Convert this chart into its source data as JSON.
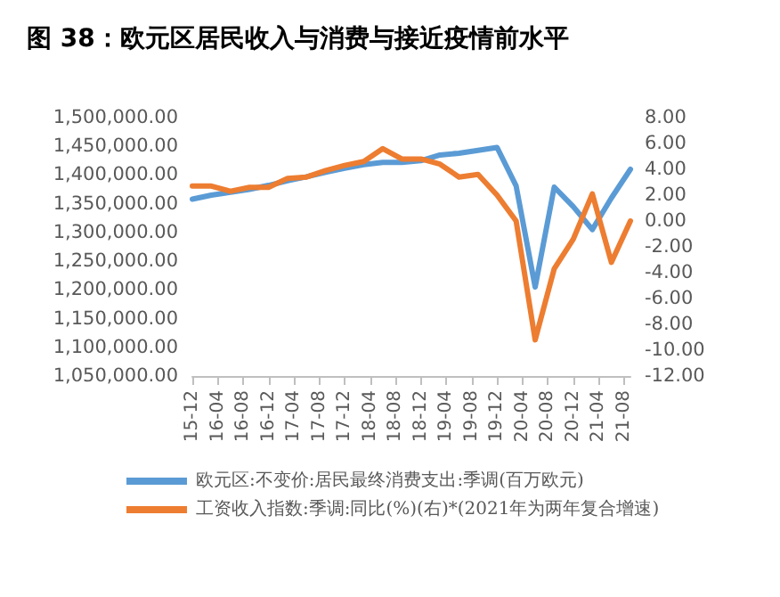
{
  "chart_data": {
    "type": "line",
    "title": "图 38：欧元区居民收入与消费与接近疫情前水平",
    "categories": [
      "15-12",
      null,
      null,
      null,
      "16-04",
      null,
      null,
      null,
      "16-08",
      null,
      null,
      null,
      "16-12",
      null,
      null,
      null,
      "17-04",
      null,
      null,
      null,
      "17-08",
      null,
      null,
      null,
      "17-12",
      null,
      null,
      null,
      "18-04",
      null,
      null,
      null,
      "18-08",
      null,
      null,
      null,
      "18-12",
      null,
      null,
      null,
      "19-04",
      null,
      null,
      null,
      "19-08",
      null,
      null,
      null,
      "19-12",
      null,
      null,
      null,
      "20-04",
      null,
      null,
      null,
      "20-08",
      null,
      null,
      null,
      "20-12",
      null,
      null,
      null,
      "21-04",
      null,
      null,
      null,
      "21-08",
      null
    ],
    "series": [
      {
        "name": "欧元区:不变价:居民最终消费支出:季调(百万欧元)",
        "color": "#5b9bd5",
        "values": [
          1358000,
          null,
          null,
          1365000,
          null,
          null,
          1370000,
          null,
          null,
          1375000,
          null,
          null,
          1382000,
          null,
          null,
          1390000,
          null,
          null,
          1397000,
          null,
          null,
          1405000,
          null,
          null,
          1412000,
          null,
          null,
          1418000,
          null,
          null,
          1422000,
          null,
          null,
          1422000,
          null,
          null,
          1425000,
          null,
          null,
          1435000,
          null,
          null,
          1438000,
          null,
          null,
          1443000,
          null,
          null,
          1448000,
          null,
          null,
          1381000,
          null,
          null,
          1205000,
          null,
          null,
          1379000,
          null,
          null,
          1345000,
          null,
          null,
          1305000,
          null,
          null,
          1360000,
          null,
          null,
          1410000
        ]
      },
      {
        "name": "工资收入指数:季调:同比(%)(右)*(2021年为两年复合增速)",
        "color": "#ed7d31",
        "axis": "y2",
        "values": [
          2.7,
          null,
          null,
          2.7,
          null,
          null,
          2.3,
          null,
          null,
          2.6,
          null,
          null,
          2.6,
          null,
          null,
          3.3,
          null,
          null,
          3.4,
          null,
          null,
          3.9,
          null,
          null,
          4.3,
          null,
          null,
          4.6,
          null,
          null,
          5.6,
          null,
          null,
          4.8,
          null,
          null,
          4.8,
          null,
          null,
          4.4,
          null,
          null,
          3.4,
          null,
          null,
          3.6,
          null,
          null,
          2.0,
          null,
          null,
          0.0,
          null,
          null,
          -9.2,
          null,
          null,
          -3.7,
          null,
          null,
          -1.4,
          null,
          null,
          2.1,
          null,
          null,
          -3.2,
          null,
          null,
          0.0
        ]
      }
    ],
    "ylim": [
      1050000,
      1500000
    ],
    "yticks": [
      {
        "value": 1050000,
        "label": "1,050,000.00"
      },
      {
        "value": 1100000,
        "label": "1,100,000.00"
      },
      {
        "value": 1150000,
        "label": "1,150,000.00"
      },
      {
        "value": 1200000,
        "label": "1,200,000.00"
      },
      {
        "value": 1250000,
        "label": "1,250,000.00"
      },
      {
        "value": 1300000,
        "label": "1,300,000.00"
      },
      {
        "value": 1350000,
        "label": "1,350,000.00"
      },
      {
        "value": 1400000,
        "label": "1,400,000.00"
      },
      {
        "value": 1450000,
        "label": "1,450,000.00"
      },
      {
        "value": 1500000,
        "label": "1,500,000.00"
      }
    ],
    "y2lim": [
      -12,
      8
    ],
    "y2ticks": [
      {
        "value": -12,
        "label": "-12.00"
      },
      {
        "value": -10,
        "label": "-10.00"
      },
      {
        "value": -8,
        "label": "-8.00"
      },
      {
        "value": -6,
        "label": "-6.00"
      },
      {
        "value": -4,
        "label": "-4.00"
      },
      {
        "value": -2,
        "label": "-2.00"
      },
      {
        "value": 0,
        "label": "0.00"
      },
      {
        "value": 2,
        "label": "2.00"
      },
      {
        "value": 4,
        "label": "4.00"
      },
      {
        "value": 6,
        "label": "6.00"
      },
      {
        "value": 8,
        "label": "8.00"
      }
    ],
    "grid": false,
    "legend": "bottom",
    "marker": "none",
    "line_style": "solid"
  }
}
